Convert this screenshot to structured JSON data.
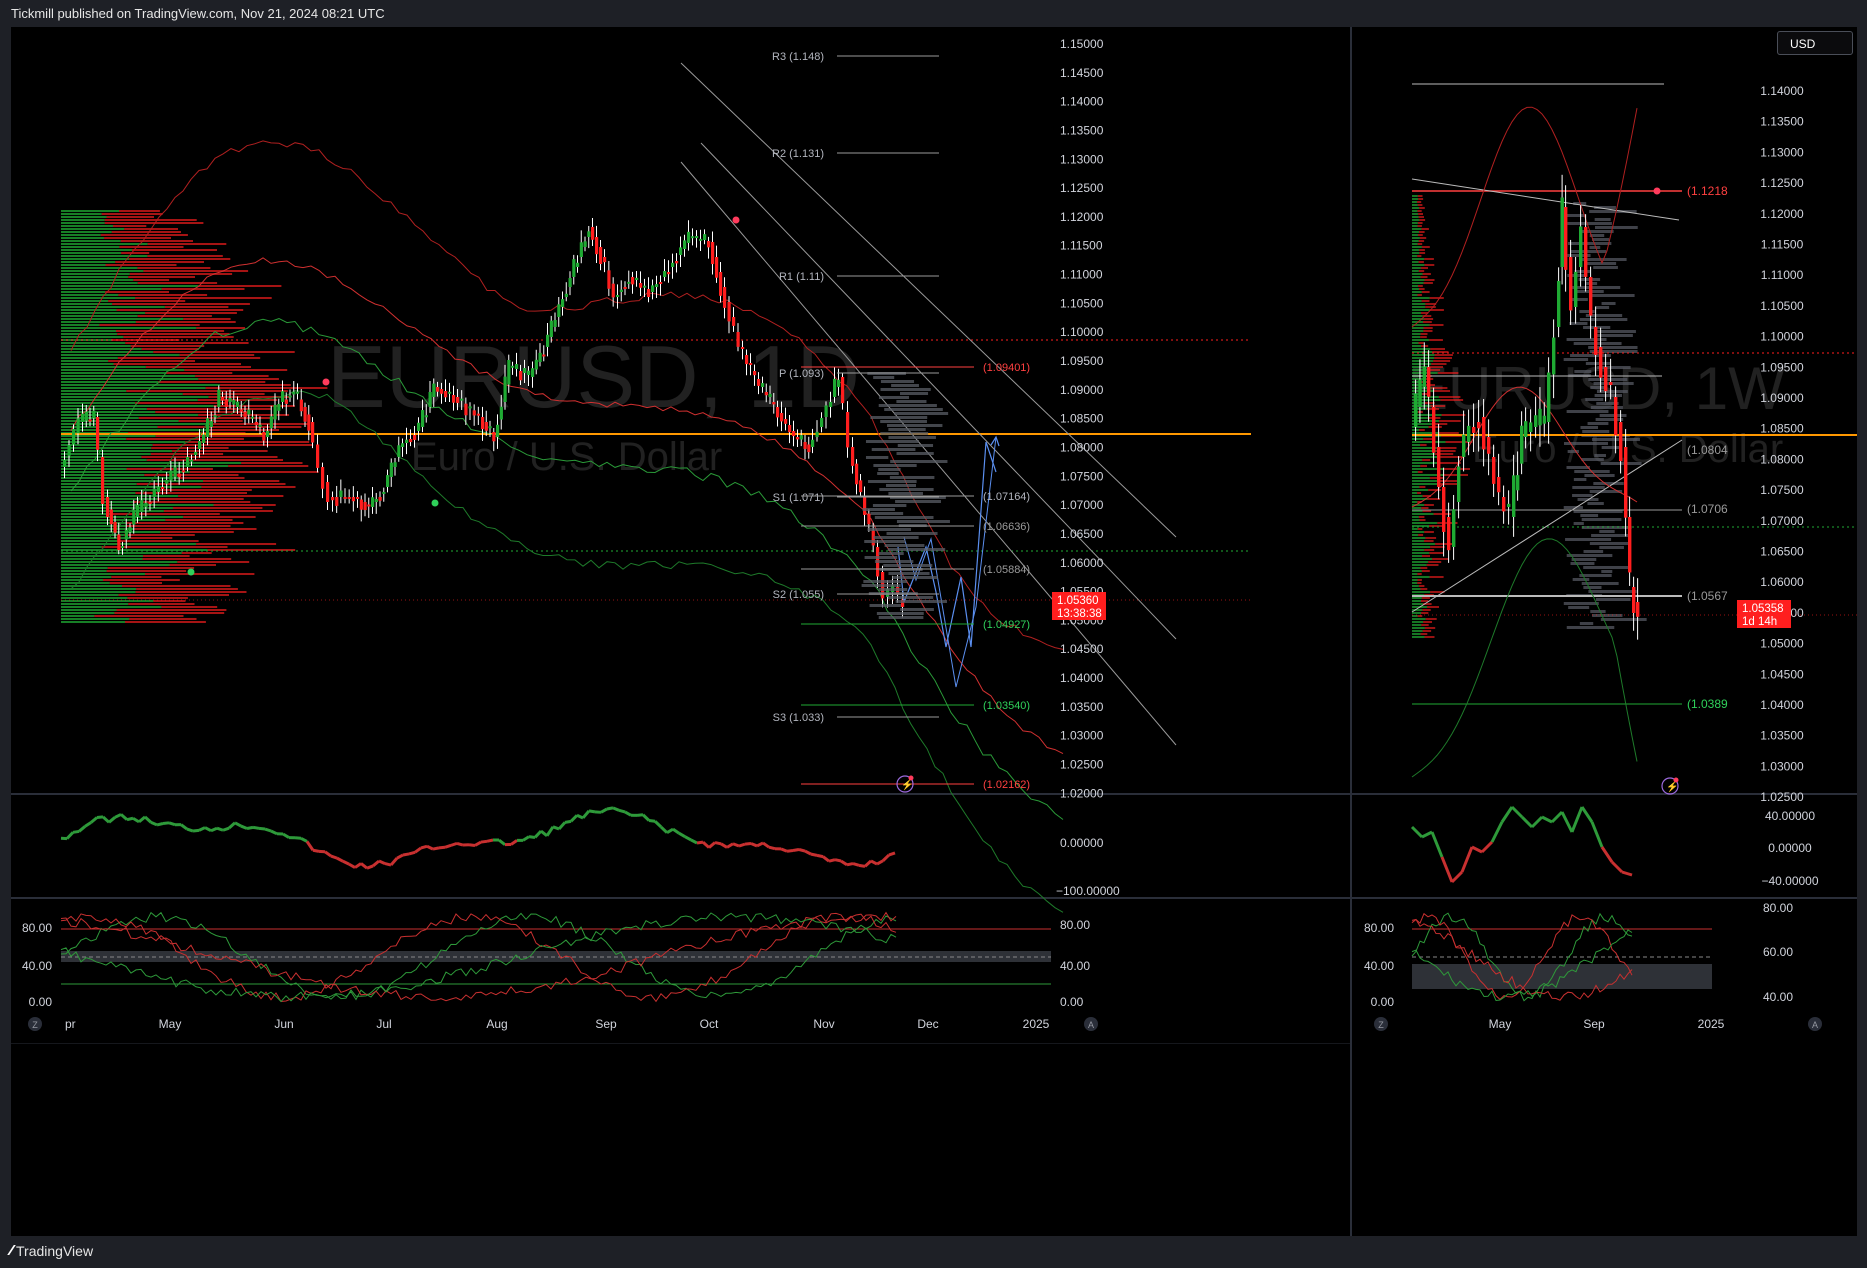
{
  "header": {
    "published": "Tickmill published on TradingView.com, Nov 21, 2024 08:21 UTC"
  },
  "footer": {
    "brand": "TradingView"
  },
  "colors": {
    "background": "#000000",
    "bull": "#1faa33",
    "bear": "#ff1e1e",
    "accent_orange": "#ff9800",
    "neutral": "#d1d4dc"
  },
  "left": {
    "watermark_symbol": "EURUSD, 1D",
    "watermark_name": "Euro / U.S. Dollar",
    "price_axis": [
      "1.15000",
      "1.14500",
      "1.14000",
      "1.13500",
      "1.13000",
      "1.12500",
      "1.12000",
      "1.11500",
      "1.11000",
      "1.10500",
      "1.10000",
      "1.09500",
      "1.09000",
      "1.08500",
      "1.08000",
      "1.07500",
      "1.07000",
      "1.06500",
      "1.06000",
      "1.05500",
      "1.05000",
      "1.04500",
      "1.04000",
      "1.03500",
      "1.03000",
      "1.02500",
      "1.02000"
    ],
    "pivot_labels": [
      "R3 (1.148)",
      "R2 (1.131)",
      "R1 (1.11)",
      "P (1.093)",
      "S1 (1.071)",
      "S2 (1.055)",
      "S3 (1.033)"
    ],
    "level_labels": [
      "(1.09401)",
      "(1.07164)",
      "(1.06636)",
      "(1.05884)",
      "(1.04927)",
      "(1.03540)",
      "(1.02162)"
    ],
    "last_price": "1.05360",
    "countdown": "13:38:38",
    "osc_axis": [
      "0.00000",
      "−100.00000"
    ],
    "stoch_axis_left": [
      "80.00",
      "40.00",
      "0.00"
    ],
    "stoch_axis_right": [
      "80.00",
      "40.00",
      "0.00"
    ],
    "time_axis": [
      "pr",
      "May",
      "Jun",
      "Jul",
      "Aug",
      "Sep",
      "Oct",
      "Nov",
      "Dec",
      "2025"
    ],
    "corner_z": "Z",
    "corner_a": "A"
  },
  "right": {
    "currency_button": "USD",
    "watermark_symbol": "EURUSD, 1W",
    "watermark_name": "Euro / U.S. Dollar",
    "price_axis": [
      "1.14000",
      "1.13500",
      "1.13000",
      "1.12500",
      "1.12000",
      "1.11500",
      "1.11000",
      "1.10500",
      "1.10000",
      "1.09500",
      "1.09000",
      "1.08500",
      "1.08000",
      "1.07500",
      "1.07000",
      "1.06500",
      "1.06000",
      "1.05500",
      "1.05000",
      "1.04500",
      "1.04000",
      "1.03500",
      "1.03000",
      "1.02500"
    ],
    "level_labels": [
      "(1.1218",
      "(1.0804",
      "(1.0706",
      "(1.0567",
      "(1.0389"
    ],
    "last_price": "1.05358",
    "countdown": "1d 14h",
    "osc_axis": [
      "40.00000",
      "0.00000",
      "−40.00000"
    ],
    "stoch_axis_left": [
      "80.00",
      "40.00",
      "0.00"
    ],
    "stoch_axis_right": [
      "80.00",
      "60.00",
      "40.00"
    ],
    "time_axis": [
      "May",
      "Sep",
      "2025"
    ],
    "corner_z": "Z",
    "corner_a": "A"
  }
}
